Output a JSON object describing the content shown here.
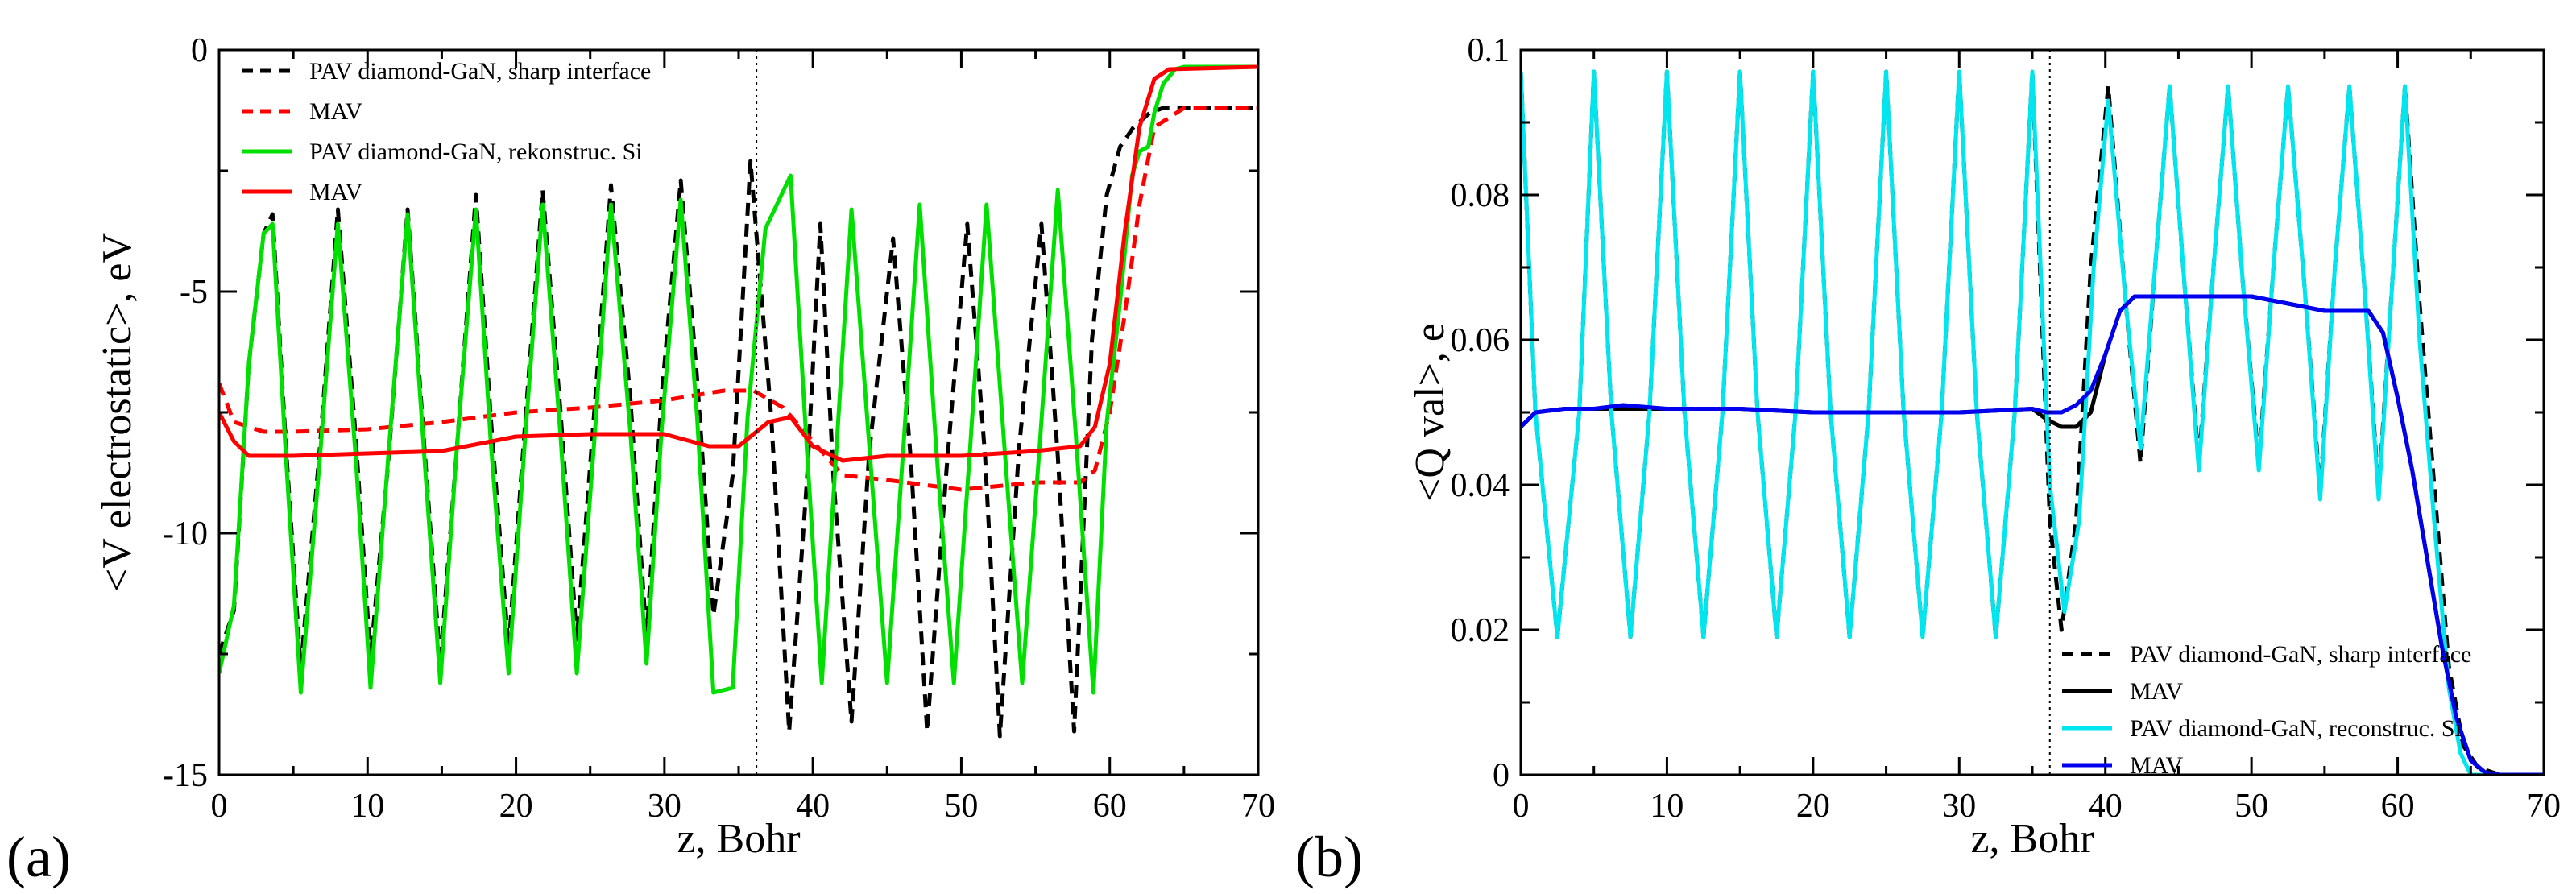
{
  "chart_data": [
    {
      "type": "line",
      "panel_label": "(a)",
      "title": "",
      "xlabel": "z, Bohr",
      "ylabel": "<V electrostatic>, eV",
      "xlim": [
        0,
        70
      ],
      "ylim": [
        -15,
        0
      ],
      "xticks": [
        0,
        10,
        20,
        30,
        40,
        50,
        60,
        70
      ],
      "yticks": [
        -15,
        -10,
        -5,
        0
      ],
      "yticklabels": [
        "-15",
        "-10",
        "-5",
        "0"
      ],
      "grid": false,
      "legend_position": "top-left",
      "vertical_marker_x": 36.2,
      "series": [
        {
          "name": "PAV diamond-GaN, sharp interface",
          "color": "#000000",
          "dash": "dashed",
          "x": [
            0,
            1,
            2,
            3,
            3.6,
            4.5,
            5.5,
            6.8,
            8,
            9.2,
            10.2,
            11.4,
            12.7,
            13.8,
            14.9,
            16,
            17.3,
            18.3,
            19.5,
            20.6,
            21.8,
            23,
            24.1,
            25.3,
            26.4,
            27.7,
            28.8,
            29.8,
            31.1,
            32.2,
            33.3,
            34.6,
            35.8,
            37.2,
            38.4,
            39.6,
            40.5,
            41.4,
            42.6,
            43.8,
            45.4,
            46.6,
            47.7,
            49,
            50.4,
            51.6,
            52.6,
            53.9,
            55.4,
            56.5,
            57.6,
            58.8,
            59.8,
            60.7,
            61.6,
            62.7,
            63.6,
            65,
            70
          ],
          "values": [
            -12.5,
            -11.6,
            -6.5,
            -3.8,
            -3.4,
            -8.2,
            -12.8,
            -8.2,
            -3.3,
            -8,
            -12.6,
            -8.5,
            -3.3,
            -8.1,
            -12.7,
            -8.3,
            -3,
            -7.6,
            -12.4,
            -7.8,
            -2.9,
            -7.5,
            -12.2,
            -7.4,
            -2.8,
            -7.2,
            -12.2,
            -7.2,
            -2.7,
            -6.8,
            -11.7,
            -8.8,
            -2.3,
            -7.6,
            -14.1,
            -8.9,
            -3.6,
            -8.9,
            -13.9,
            -8.3,
            -3.9,
            -8.5,
            -14.1,
            -8.7,
            -3.6,
            -8.4,
            -14.2,
            -8.2,
            -3.6,
            -8.4,
            -14.1,
            -6,
            -3,
            -2,
            -1.6,
            -1.3,
            -1.2,
            -1.2,
            -1.2
          ]
        },
        {
          "name": "MAV",
          "color": "#ff0000",
          "dash": "dashed",
          "x": [
            0,
            1,
            3,
            5,
            10,
            15,
            20,
            25,
            30,
            34,
            36,
            38,
            40,
            42,
            45,
            50,
            55,
            58,
            59,
            60,
            61,
            62,
            63,
            65,
            70
          ],
          "values": [
            -6.9,
            -7.7,
            -7.9,
            -7.9,
            -7.85,
            -7.7,
            -7.5,
            -7.4,
            -7.25,
            -7.05,
            -7.05,
            -7.4,
            -8.1,
            -8.8,
            -8.9,
            -9.1,
            -8.95,
            -8.95,
            -8.7,
            -7.5,
            -5.5,
            -3.2,
            -1.6,
            -1.2,
            -1.2
          ]
        },
        {
          "name": "PAV diamond-GaN, rekonstruc. Si",
          "color": "#00e000",
          "dash": "solid",
          "x": [
            0,
            1,
            2,
            3,
            3.6,
            4.5,
            5.5,
            6.8,
            8,
            9.2,
            10.2,
            11.4,
            12.7,
            13.8,
            14.9,
            16,
            17.3,
            18.3,
            19.5,
            20.6,
            21.8,
            23,
            24.1,
            25.3,
            26.4,
            27.7,
            28.8,
            29.8,
            31.1,
            32.2,
            33.3,
            34.6,
            35.6,
            36.8,
            38.5,
            39.6,
            40.6,
            41.6,
            42.6,
            43.8,
            45,
            46.1,
            47.2,
            48.3,
            49.5,
            50.6,
            51.7,
            52.9,
            54.1,
            55.3,
            56.5,
            57.7,
            58.9,
            59.8,
            60.7,
            61.5,
            62,
            62.6,
            63,
            63.6,
            64.4,
            65,
            70
          ],
          "values": [
            -12.9,
            -11.5,
            -6.5,
            -3.8,
            -3.6,
            -8.4,
            -13.3,
            -8.4,
            -3.6,
            -8.4,
            -13.2,
            -8.4,
            -3.4,
            -8.3,
            -13.1,
            -8.3,
            -3.3,
            -8.1,
            -12.9,
            -8.1,
            -3.2,
            -8,
            -12.9,
            -8,
            -3.2,
            -7.9,
            -12.7,
            -7.9,
            -3.1,
            -7.6,
            -13.3,
            -13.2,
            -7.6,
            -3.7,
            -2.6,
            -8.3,
            -13.1,
            -8.2,
            -3.3,
            -8.2,
            -13.1,
            -8.2,
            -3.2,
            -8.2,
            -13.1,
            -8.2,
            -3.2,
            -8.2,
            -13.1,
            -8.1,
            -2.9,
            -7.9,
            -13.3,
            -7.7,
            -5.2,
            -2.6,
            -2.1,
            -2,
            -1.3,
            -0.7,
            -0.4,
            -0.35,
            -0.35
          ]
        },
        {
          "name": "MAV",
          "color": "#ff0000",
          "dash": "solid",
          "x": [
            0,
            1,
            2,
            5,
            10,
            15,
            20,
            25,
            30,
            33,
            35,
            37,
            38.5,
            40,
            42,
            45,
            50,
            55,
            58,
            59,
            60,
            61,
            62,
            63,
            64,
            70
          ],
          "values": [
            -7.5,
            -8.1,
            -8.4,
            -8.4,
            -8.35,
            -8.3,
            -8,
            -7.95,
            -7.95,
            -8.2,
            -8.2,
            -7.7,
            -7.6,
            -8.2,
            -8.5,
            -8.4,
            -8.4,
            -8.3,
            -8.2,
            -7.8,
            -6.5,
            -3.8,
            -1.6,
            -0.6,
            -0.4,
            -0.35
          ]
        }
      ]
    },
    {
      "type": "line",
      "panel_label": "(b)",
      "title": "",
      "xlabel": "z, Bohr",
      "ylabel": "<Q val>, e",
      "xlim": [
        0,
        70
      ],
      "ylim": [
        0,
        0.1
      ],
      "xticks": [
        0,
        10,
        20,
        30,
        40,
        50,
        60,
        70
      ],
      "yticks": [
        0,
        0.02,
        0.04,
        0.06,
        0.08,
        0.1
      ],
      "yticklabels": [
        "0",
        "0.02",
        "0.04",
        "0.06",
        "0.08",
        "0.1"
      ],
      "grid": false,
      "legend_position": "bottom-right",
      "vertical_marker_x": 36.2,
      "series": [
        {
          "name": "PAV diamond-GaN, sharp interface",
          "color": "#000000",
          "dash": "dashed",
          "x": [
            0,
            1,
            2.5,
            4,
            5,
            6.2,
            7.5,
            8.8,
            10,
            11.2,
            12.5,
            13.8,
            15,
            16.2,
            17.5,
            18.8,
            20,
            21.2,
            22.5,
            23.8,
            25,
            26.2,
            27.5,
            28.8,
            30,
            31.2,
            32.5,
            33.8,
            35,
            36.2,
            37,
            38,
            39,
            40.2,
            41.4,
            42.4,
            43.4,
            44.4,
            45.4,
            46.4,
            47.4,
            48.4,
            49.4,
            50.5,
            51.5,
            52.5,
            53.6,
            54.7,
            55.7,
            56.7,
            57.7,
            58.7,
            59.7,
            60.5,
            61.5,
            62.5,
            63.5,
            64.5,
            65.5,
            67,
            70
          ],
          "values": [
            0.097,
            0.05,
            0.019,
            0.05,
            0.097,
            0.05,
            0.019,
            0.05,
            0.097,
            0.05,
            0.019,
            0.05,
            0.097,
            0.05,
            0.019,
            0.05,
            0.097,
            0.05,
            0.019,
            0.05,
            0.097,
            0.05,
            0.019,
            0.05,
            0.097,
            0.05,
            0.019,
            0.05,
            0.097,
            0.035,
            0.02,
            0.035,
            0.07,
            0.095,
            0.065,
            0.043,
            0.07,
            0.095,
            0.068,
            0.043,
            0.07,
            0.095,
            0.068,
            0.043,
            0.07,
            0.095,
            0.068,
            0.039,
            0.07,
            0.095,
            0.068,
            0.039,
            0.07,
            0.095,
            0.065,
            0.04,
            0.015,
            0.004,
            0.001,
            0,
            0
          ]
        },
        {
          "name": "MAV",
          "color": "#000000",
          "dash": "solid",
          "x": [
            0,
            1,
            3,
            5,
            10,
            15,
            20,
            25,
            30,
            35,
            36,
            37,
            38,
            39,
            40,
            41,
            42,
            43,
            45,
            50,
            55,
            58,
            59,
            60,
            61,
            62,
            63,
            64,
            65,
            66,
            67,
            70
          ],
          "values": [
            0.048,
            0.05,
            0.0505,
            0.0505,
            0.0505,
            0.0505,
            0.05,
            0.05,
            0.05,
            0.0505,
            0.049,
            0.048,
            0.048,
            0.05,
            0.058,
            0.064,
            0.066,
            0.066,
            0.066,
            0.066,
            0.064,
            0.064,
            0.061,
            0.052,
            0.042,
            0.03,
            0.018,
            0.008,
            0.002,
            0.0003,
            0,
            0
          ]
        },
        {
          "name": "PAV diamond-GaN, reconstruc. Si",
          "color": "#00e5ee",
          "dash": "solid",
          "x": [
            0,
            1,
            2.5,
            4,
            5,
            6.2,
            7.5,
            8.8,
            10,
            11.2,
            12.5,
            13.8,
            15,
            16.2,
            17.5,
            18.8,
            20,
            21.2,
            22.5,
            23.8,
            25,
            26.2,
            27.5,
            28.8,
            30,
            31.2,
            32.5,
            33.8,
            35,
            36.2,
            37.2,
            38.2,
            39.2,
            40.2,
            41.4,
            42.4,
            43.4,
            44.4,
            45.4,
            46.4,
            47.4,
            48.4,
            49.4,
            50.5,
            51.5,
            52.5,
            53.6,
            54.7,
            55.7,
            56.7,
            57.7,
            58.7,
            59.7,
            60.5,
            61.5,
            62.5,
            63.5,
            64.3,
            65,
            66,
            70
          ],
          "values": [
            0.097,
            0.05,
            0.019,
            0.05,
            0.097,
            0.05,
            0.019,
            0.05,
            0.097,
            0.05,
            0.019,
            0.05,
            0.097,
            0.05,
            0.019,
            0.05,
            0.097,
            0.05,
            0.019,
            0.05,
            0.097,
            0.05,
            0.019,
            0.05,
            0.097,
            0.05,
            0.019,
            0.05,
            0.097,
            0.04,
            0.0225,
            0.035,
            0.07,
            0.093,
            0.065,
            0.045,
            0.07,
            0.095,
            0.068,
            0.042,
            0.07,
            0.095,
            0.068,
            0.042,
            0.07,
            0.095,
            0.068,
            0.038,
            0.07,
            0.095,
            0.068,
            0.038,
            0.07,
            0.095,
            0.06,
            0.035,
            0.012,
            0.003,
            0,
            0,
            0
          ]
        },
        {
          "name": "MAV",
          "color": "#0000ee",
          "dash": "solid",
          "x": [
            0,
            1,
            3,
            5,
            7,
            10,
            15,
            20,
            25,
            30,
            35,
            36,
            37,
            38,
            39,
            40,
            41,
            42,
            43,
            45,
            50,
            55,
            58,
            59,
            60,
            61,
            62,
            63,
            64,
            65,
            66,
            67,
            70
          ],
          "values": [
            0.048,
            0.05,
            0.0505,
            0.0505,
            0.051,
            0.0505,
            0.0505,
            0.05,
            0.05,
            0.05,
            0.0505,
            0.05,
            0.05,
            0.051,
            0.053,
            0.058,
            0.064,
            0.066,
            0.066,
            0.066,
            0.066,
            0.064,
            0.064,
            0.061,
            0.052,
            0.042,
            0.03,
            0.018,
            0.008,
            0.002,
            0.0003,
            0,
            0
          ]
        }
      ]
    }
  ]
}
